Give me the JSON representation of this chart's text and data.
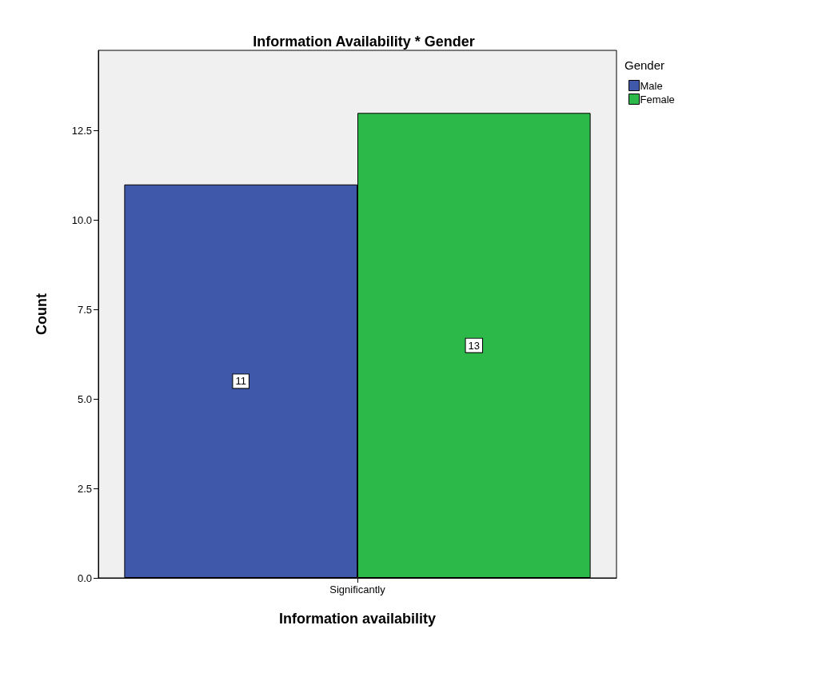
{
  "chart_data": {
    "type": "bar",
    "title": "Information Availability * Gender",
    "xlabel": "Information availability",
    "ylabel": "Count",
    "legend_title": "Gender",
    "categories": [
      "Significantly"
    ],
    "series": [
      {
        "name": "Male",
        "color": "#3f58aa",
        "values": [
          11
        ]
      },
      {
        "name": "Female",
        "color": "#2db84a",
        "values": [
          13
        ]
      }
    ],
    "ylim": [
      0,
      14.75
    ],
    "yticks": [
      {
        "value": 0,
        "label": "0.0"
      },
      {
        "value": 2.5,
        "label": "2.5"
      },
      {
        "value": 5,
        "label": "5.0"
      },
      {
        "value": 7.5,
        "label": "7.5"
      },
      {
        "value": 10,
        "label": "10.0"
      },
      {
        "value": 12.5,
        "label": "12.5"
      }
    ],
    "data_labels": true,
    "legend": "right",
    "grid": false
  }
}
